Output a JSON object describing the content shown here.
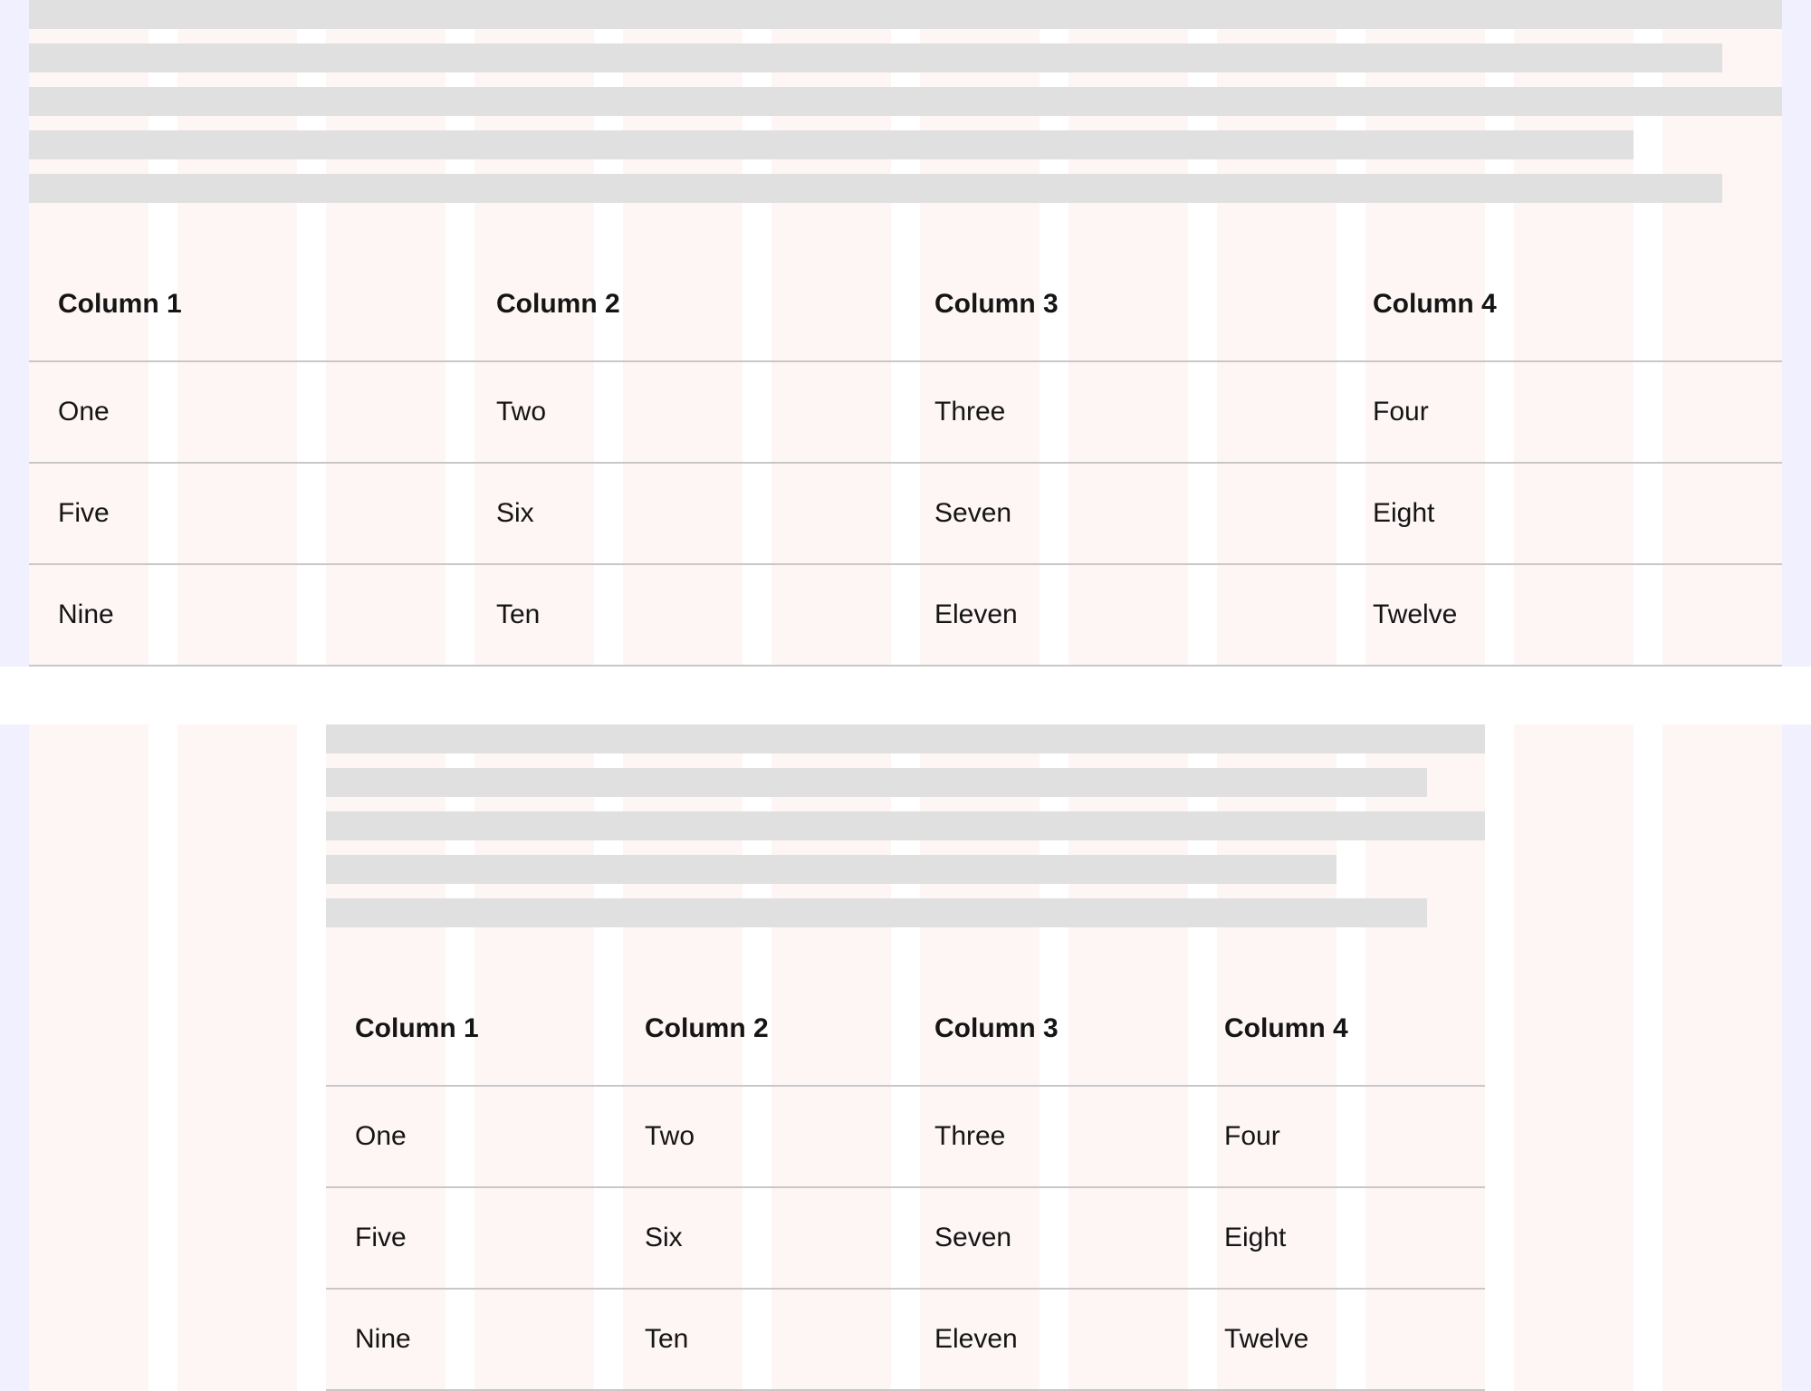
{
  "colors": {
    "grid_column": "#fef5f5",
    "margin": "#f0f0fe",
    "skeleton": "#e0e0e0",
    "divider": "#c8c8c8",
    "text": "#151515"
  },
  "tables": [
    {
      "headers": [
        "Column 1",
        "Column 2",
        "Column 3",
        "Column 4"
      ],
      "rows": [
        [
          "One",
          "Two",
          "Three",
          "Four"
        ],
        [
          "Five",
          "Six",
          "Seven",
          "Eight"
        ],
        [
          "Nine",
          "Ten",
          "Eleven",
          "Twelve"
        ]
      ]
    },
    {
      "headers": [
        "Column 1",
        "Column 2",
        "Column 3",
        "Column 4"
      ],
      "rows": [
        [
          "One",
          "Two",
          "Three",
          "Four"
        ],
        [
          "Five",
          "Six",
          "Seven",
          "Eight"
        ],
        [
          "Nine",
          "Ten",
          "Eleven",
          "Twelve"
        ]
      ]
    }
  ]
}
